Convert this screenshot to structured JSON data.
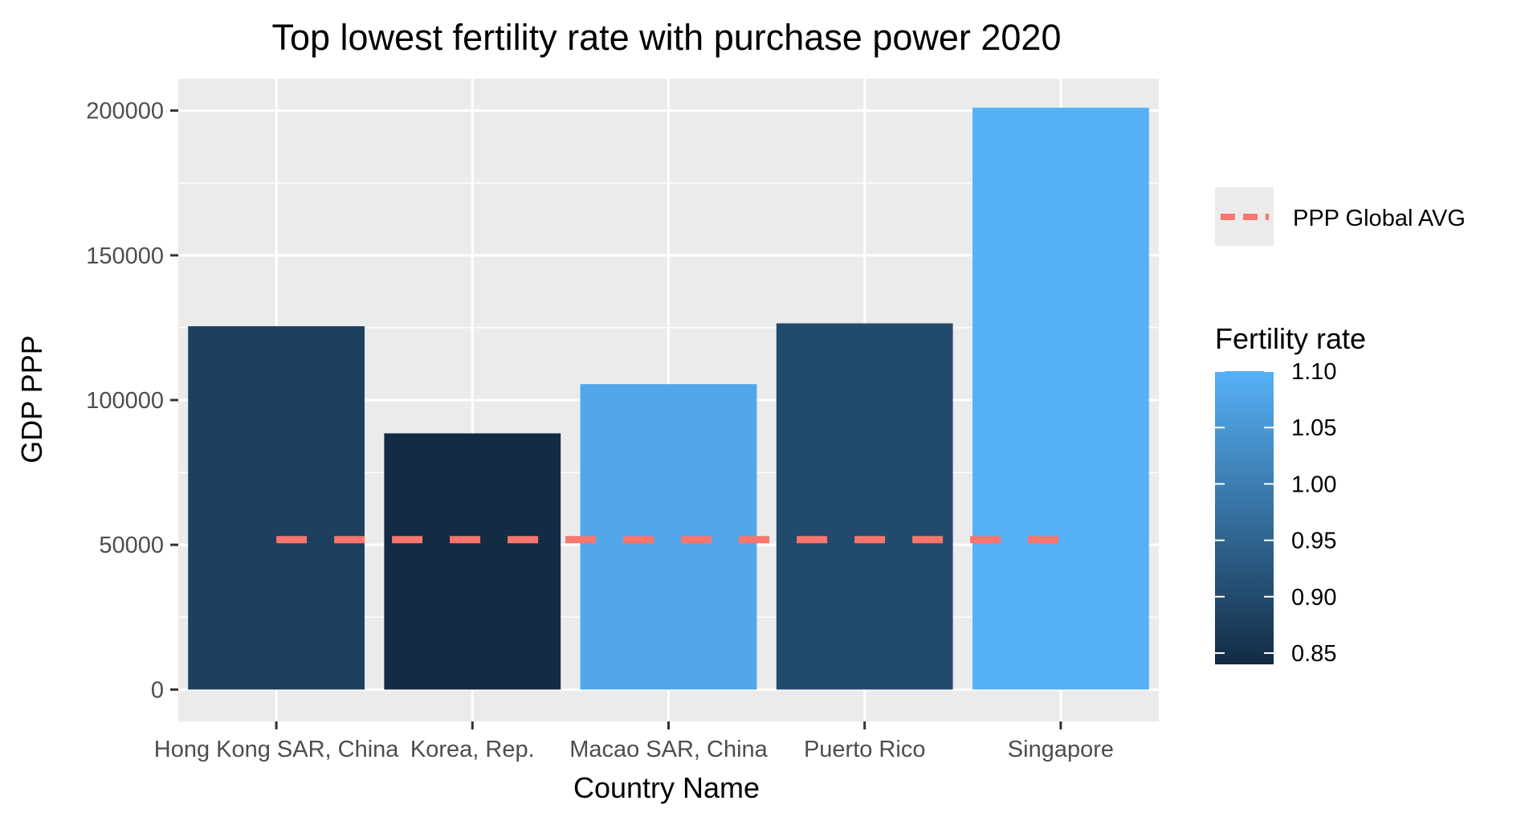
{
  "chart_data": {
    "type": "bar",
    "title": "Top lowest fertility rate with purchase power 2020",
    "xlabel": "Country Name",
    "ylabel": "GDP PPP",
    "categories": [
      "Hong Kong SAR, China",
      "Korea, Rep.",
      "Macao SAR, China",
      "Puerto Rico",
      "Singapore"
    ],
    "values": [
      125500,
      88500,
      105500,
      126500,
      201000
    ],
    "fertility": [
      0.88,
      0.84,
      1.08,
      0.9,
      1.1
    ],
    "ylim": [
      -11000,
      211000
    ],
    "yticks": [
      0,
      50000,
      100000,
      150000,
      200000
    ],
    "ytick_labels": [
      "0",
      "50000",
      "100000",
      "150000",
      "200000"
    ],
    "reference_line": {
      "name": "PPP Global AVG",
      "value": 51800,
      "color": "#f8766d",
      "style": "dashed"
    },
    "color_scale": {
      "name": "Fertility rate",
      "min": 0.84,
      "max": 1.1,
      "low_color": "#132b43",
      "high_color": "#56b1f7",
      "ticks": [
        0.85,
        0.9,
        0.95,
        1.0,
        1.05,
        1.1
      ],
      "tick_labels": [
        "0.85",
        "0.90",
        "0.95",
        "1.00",
        "1.05",
        "1.10"
      ]
    },
    "grid": true,
    "panel_background": "#ebebeb",
    "legend_position": "right"
  }
}
